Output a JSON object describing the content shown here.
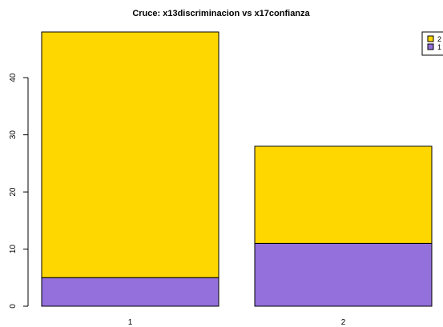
{
  "chart_data": {
    "type": "bar",
    "stacked": true,
    "title": "Cruce: x13discriminacion vs x17confianza",
    "xlabel": "",
    "ylabel": "",
    "categories": [
      "1",
      "2"
    ],
    "series": [
      {
        "name": "1",
        "values": [
          5,
          11
        ],
        "color": "#9370DB"
      },
      {
        "name": "2",
        "values": [
          43,
          17
        ],
        "color": "#FFD700"
      }
    ],
    "ylim": [
      0,
      48
    ],
    "yticks": [
      0,
      10,
      20,
      30,
      40
    ],
    "grid": false,
    "legend_position": "top-right",
    "legend_order": [
      "2",
      "1"
    ]
  }
}
